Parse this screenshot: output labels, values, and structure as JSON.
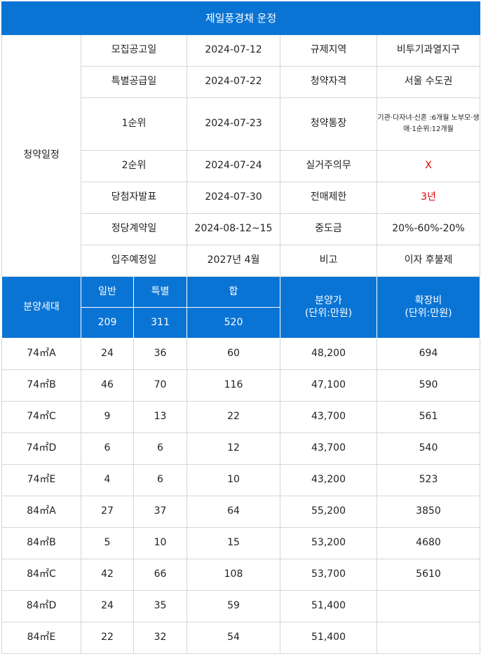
{
  "title": "제일풍경채 운정",
  "schedule": {
    "section_label": "청약일정",
    "rows": [
      {
        "label": "모집공고일",
        "date": "2024-07-12",
        "info_label": "규제지역",
        "info_value": "비투기과열지구"
      },
      {
        "label": "특별공급일",
        "date": "2024-07-22",
        "info_label": "청약자격",
        "info_value": "서울 수도권"
      },
      {
        "label": "1순위",
        "date": "2024-07-23",
        "info_label": "청약통장",
        "info_value": "기관·다자녀·신혼 :6개월 노부모·생애·1순위:12개월"
      },
      {
        "label": "2순위",
        "date": "2024-07-24",
        "info_label": "실거주의무",
        "info_value": "X"
      },
      {
        "label": "당첨자발표",
        "date": "2024-07-30",
        "info_label": "전매제한",
        "info_value": "3년"
      },
      {
        "label": "정당계약일",
        "date": "2024-08-12~15",
        "info_label": "중도금",
        "info_value": "20%-60%-20%"
      },
      {
        "label": "입주예정일",
        "date": "2027년 4월",
        "info_label": "비고",
        "info_value": "이자 후불제"
      }
    ]
  },
  "units_header": {
    "type_label": "분양세대",
    "general_label": "일반",
    "special_label": "특별",
    "total_label": "합",
    "general_total": "209",
    "special_total": "311",
    "grand_total": "520",
    "price_label": "분양가",
    "price_unit": "(단위:만원)",
    "expansion_label": "확장비",
    "expansion_unit": "(단위:만원)"
  },
  "units": [
    {
      "type": "74㎡A",
      "general": "24",
      "special": "36",
      "total": "60",
      "price": "48,200",
      "expansion": "694"
    },
    {
      "type": "74㎡B",
      "general": "46",
      "special": "70",
      "total": "116",
      "price": "47,100",
      "expansion": "590"
    },
    {
      "type": "74㎡C",
      "general": "9",
      "special": "13",
      "total": "22",
      "price": "43,700",
      "expansion": "561"
    },
    {
      "type": "74㎡D",
      "general": "6",
      "special": "6",
      "total": "12",
      "price": "43,700",
      "expansion": "540"
    },
    {
      "type": "74㎡E",
      "general": "4",
      "special": "6",
      "total": "10",
      "price": "43,200",
      "expansion": "523"
    },
    {
      "type": "84㎡A",
      "general": "27",
      "special": "37",
      "total": "64",
      "price": "55,200",
      "expansion": "3850"
    },
    {
      "type": "84㎡B",
      "general": "5",
      "special": "10",
      "total": "15",
      "price": "53,200",
      "expansion": "4680"
    },
    {
      "type": "84㎡C",
      "general": "42",
      "special": "66",
      "total": "108",
      "price": "53,700",
      "expansion": "5610"
    },
    {
      "type": "84㎡D",
      "general": "24",
      "special": "35",
      "total": "59",
      "price": "51,400",
      "expansion": ""
    },
    {
      "type": "84㎡E",
      "general": "22",
      "special": "32",
      "total": "54",
      "price": "51,400",
      "expansion": ""
    }
  ],
  "colors": {
    "header_blue": "#0a74d4",
    "border": "#d6d6d6",
    "alert_red": "#e00000"
  }
}
